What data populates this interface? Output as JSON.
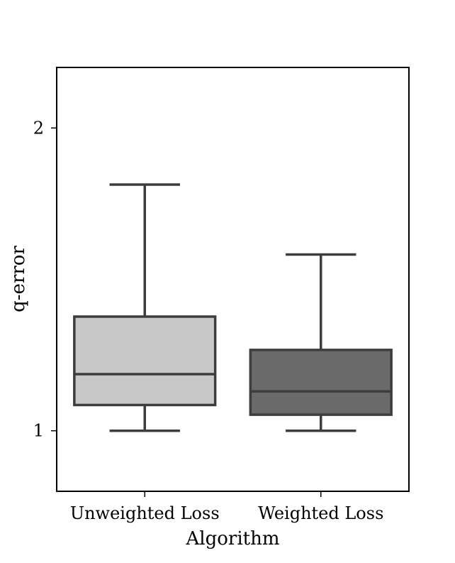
{
  "chart_data": {
    "type": "box",
    "xlabel": "Algorithm",
    "ylabel": "q-error",
    "categories": [
      "Unweighted Loss",
      "Weighted Loss"
    ],
    "ylim": [
      0.8,
      2.2
    ],
    "yticks": [
      1,
      2
    ],
    "ytick_labels": [
      "1",
      "2"
    ],
    "grid": false,
    "boxes": [
      {
        "category": "Unweighted Loss",
        "whisker_low": 1.0,
        "q1": 1.085,
        "median": 1.187,
        "q3": 1.377,
        "whisker_high": 1.813,
        "color": "#c8c8c8"
      },
      {
        "category": "Weighted Loss",
        "whisker_low": 1.0,
        "q1": 1.053,
        "median": 1.13,
        "q3": 1.267,
        "whisker_high": 1.582,
        "color": "#6a6a6a"
      }
    ],
    "edge_color": "#3d3d3d"
  }
}
